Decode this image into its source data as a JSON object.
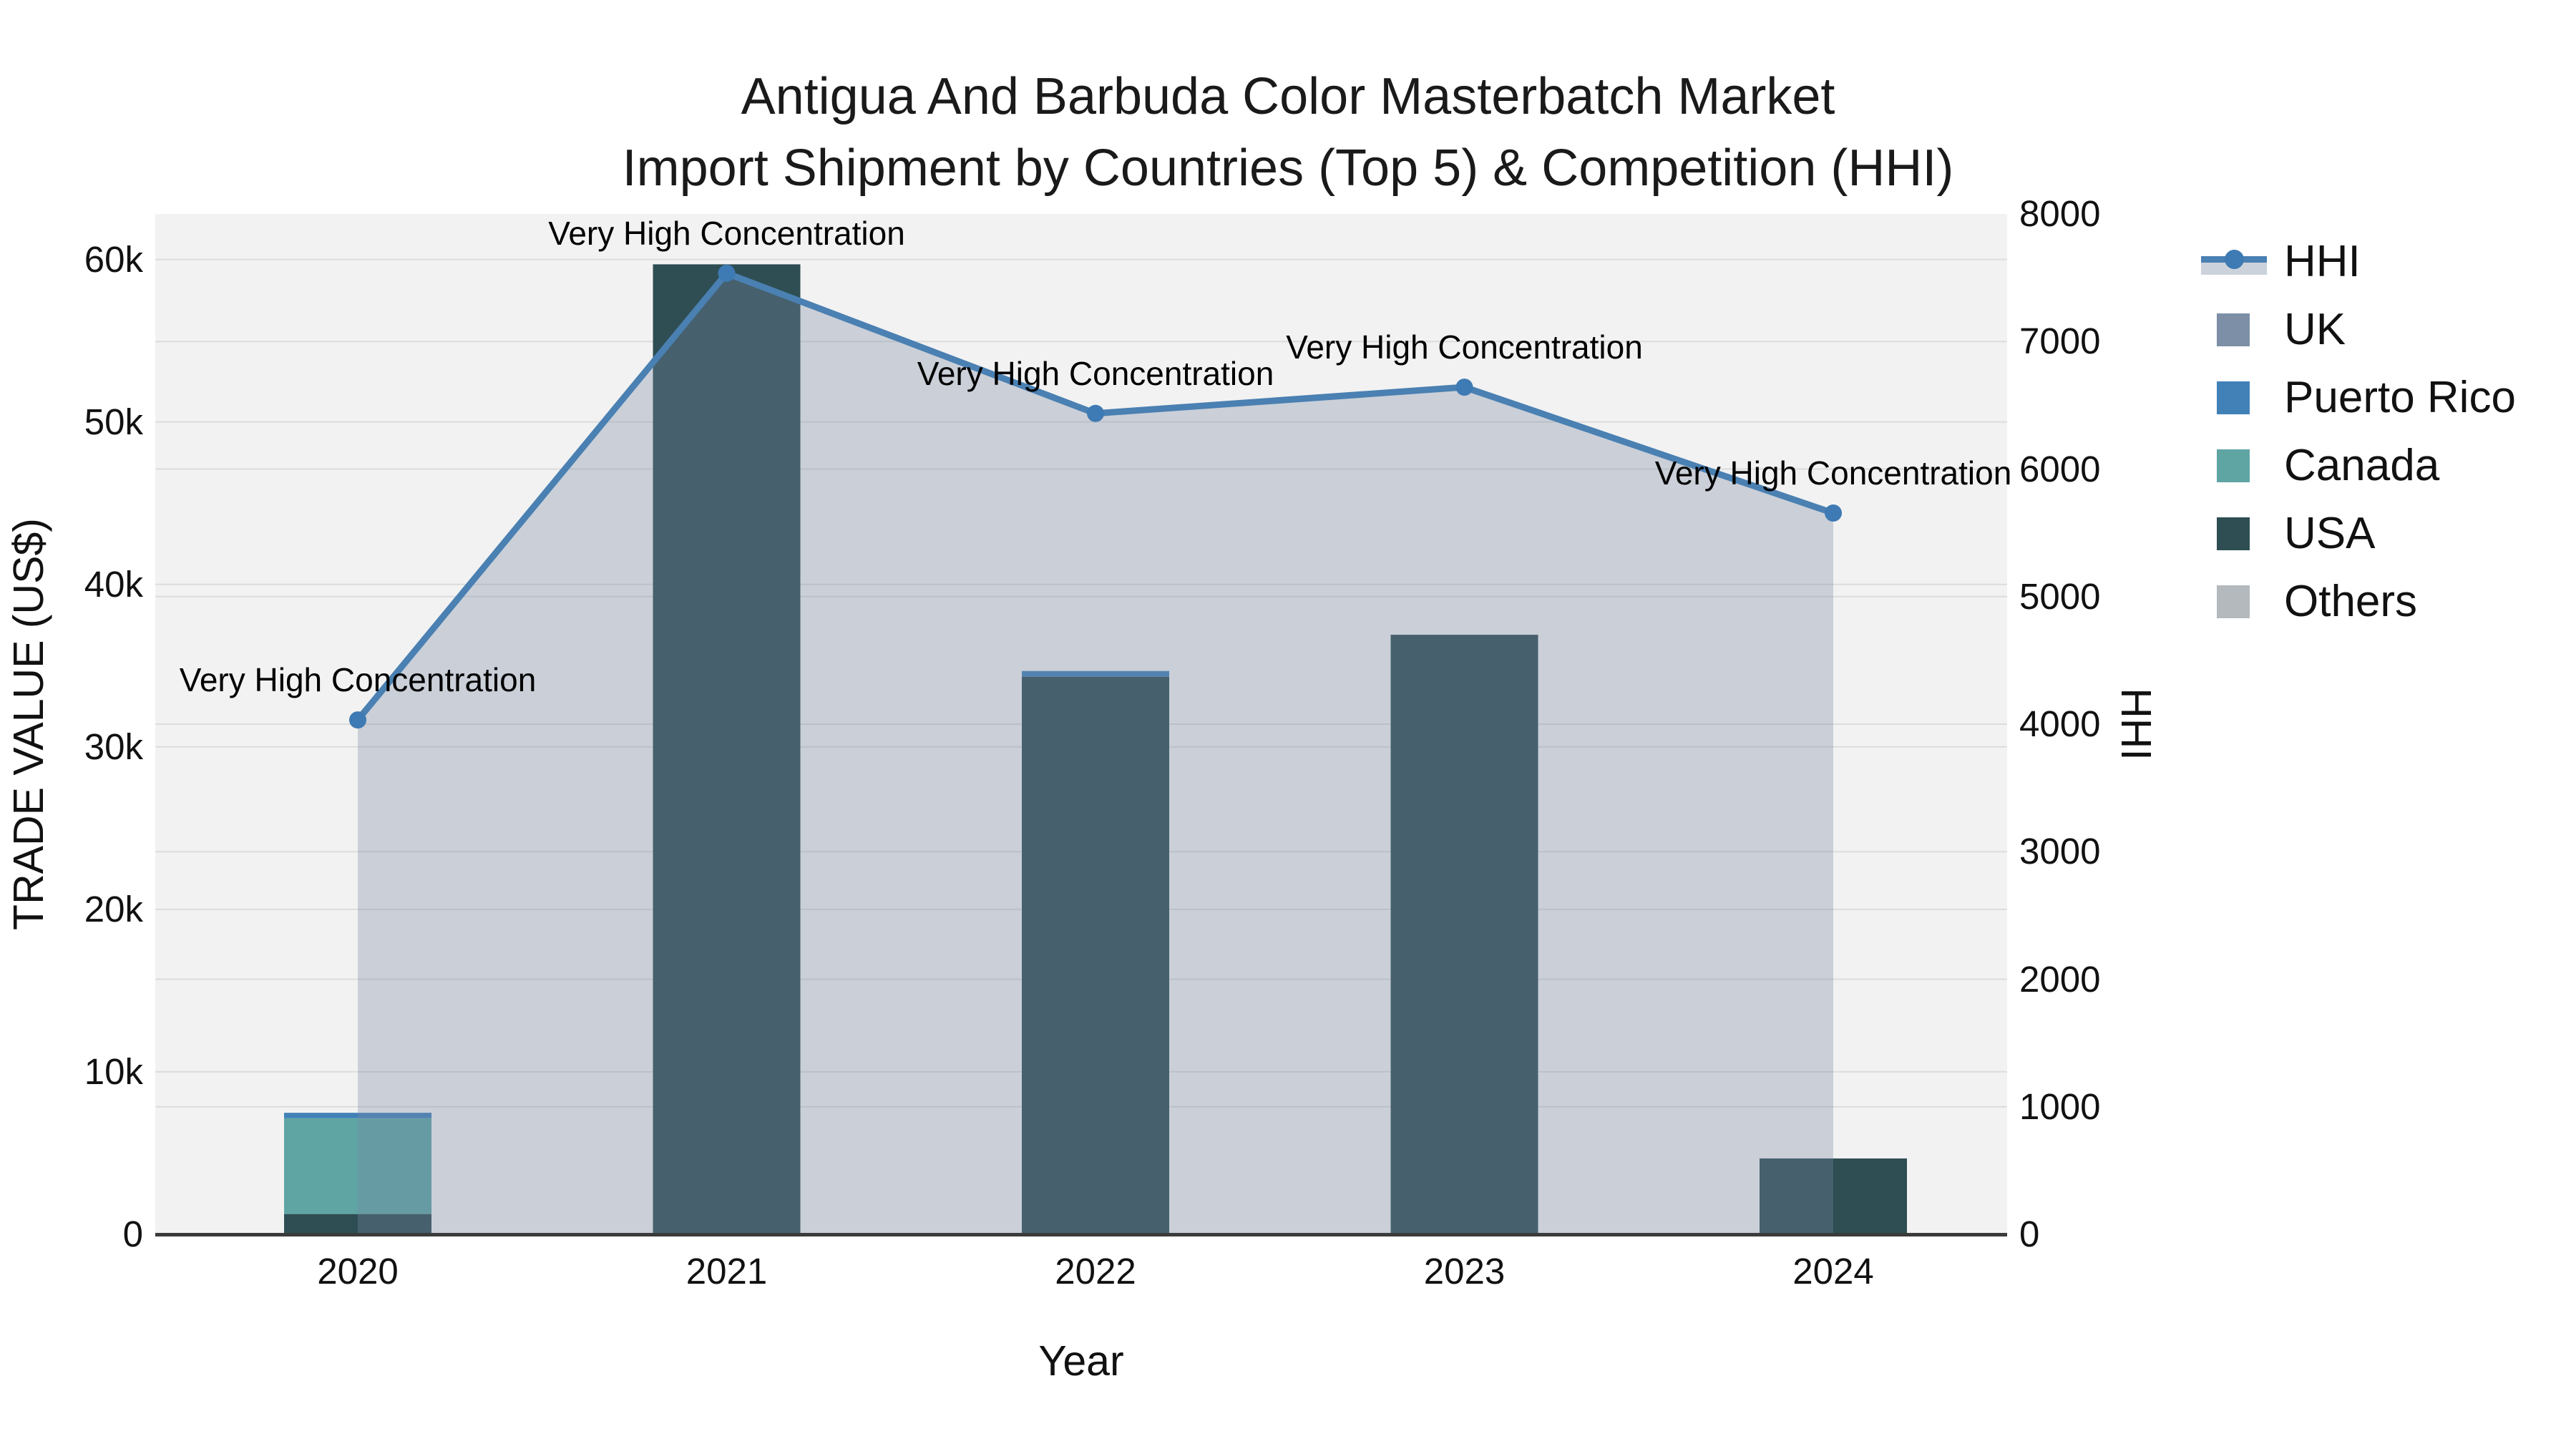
{
  "figure": {
    "title_line1": "Antigua And Barbuda Color Masterbatch Market",
    "title_line2": "Import Shipment by Countries (Top 5) & Competition (HHI)"
  },
  "chart_data": {
    "type": "bar+line",
    "title": "Antigua And Barbuda Color Masterbatch Market Import Shipment by Countries (Top 5) & Competition (HHI)",
    "categories": [
      "2020",
      "2021",
      "2022",
      "2023",
      "2024"
    ],
    "x_axis": {
      "title": "Year"
    },
    "y_left_axis": {
      "title": "TRADE VALUE (US$)",
      "tick_labels": [
        "0",
        "10k",
        "20k",
        "30k",
        "40k",
        "50k",
        "60k"
      ],
      "tick_values": [
        0,
        10000,
        20000,
        30000,
        40000,
        50000,
        60000
      ],
      "range": [
        0,
        62800
      ],
      "grid": true
    },
    "y_right_axis": {
      "title": "HHI",
      "tick_labels": [
        "0",
        "1000",
        "2000",
        "3000",
        "4000",
        "5000",
        "6000",
        "7000",
        "8000"
      ],
      "tick_values": [
        0,
        1000,
        2000,
        3000,
        4000,
        5000,
        6000,
        7000,
        8000
      ],
      "range": [
        0,
        8000
      ],
      "grid": true
    },
    "bar_series": [
      {
        "name": "UK",
        "color": "#7c8fa6",
        "values": [
          0,
          0,
          0,
          0,
          0
        ]
      },
      {
        "name": "Puerto Rico",
        "color": "#4181b8",
        "values": [
          330,
          0,
          350,
          0,
          0
        ]
      },
      {
        "name": "Canada",
        "color": "#5fa5a4",
        "values": [
          5900,
          0,
          0,
          0,
          0
        ]
      },
      {
        "name": "USA",
        "color": "#2e4e53",
        "values": [
          1250,
          59700,
          34320,
          36900,
          4670
        ]
      },
      {
        "name": "Others",
        "color": "#b3b9bd",
        "values": [
          0,
          0,
          0,
          0,
          0
        ]
      }
    ],
    "stack_order_bottom_to_top": [
      "USA",
      "Canada",
      "Puerto Rico",
      "UK",
      "Others"
    ],
    "line_series": {
      "name": "HHI",
      "axis": "right",
      "color": "#4a80b2",
      "marker_color": "#3e7ab3",
      "area_fill": "rgba(121,136,163,0.33)",
      "values": [
        4033,
        7535,
        6436,
        6642,
        5655
      ]
    },
    "annotations": [
      {
        "category": "2020",
        "text": "Very High Concentration"
      },
      {
        "category": "2021",
        "text": "Very High Concentration"
      },
      {
        "category": "2022",
        "text": "Very High Concentration"
      },
      {
        "category": "2023",
        "text": "Very High Concentration"
      },
      {
        "category": "2024",
        "text": "Very High Concentration"
      }
    ],
    "legend": {
      "items": [
        {
          "label": "HHI",
          "kind": "line",
          "color": "#4a80b2"
        },
        {
          "label": "UK",
          "kind": "square",
          "color": "#7c8fa6"
        },
        {
          "label": "Puerto Rico",
          "kind": "square",
          "color": "#4181b8"
        },
        {
          "label": "Canada",
          "kind": "square",
          "color": "#5fa5a4"
        },
        {
          "label": "USA",
          "kind": "square",
          "color": "#2e4e53"
        },
        {
          "label": "Others",
          "kind": "square",
          "color": "#b3b9bd"
        }
      ]
    },
    "layout_hints": {
      "plot_bg": "#f2f2f2",
      "grid_color": "#dcdcdc",
      "axis_line_color": "#3b3b3b",
      "legend_position": "right"
    }
  }
}
